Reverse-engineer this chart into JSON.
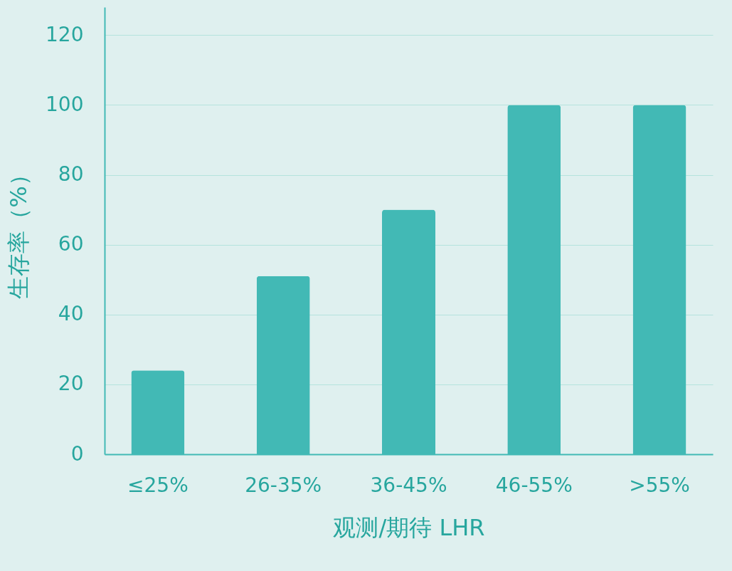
{
  "chart_data": {
    "type": "bar",
    "xlabel": "观测/期待 LHR",
    "ylabel": "生存率（%）",
    "categories": [
      "≤25%",
      "26-35%",
      "36-45%",
      "46-55%",
      ">55%"
    ],
    "values": [
      24,
      51,
      70,
      100,
      100
    ],
    "color": "#42b9b5",
    "ylim": [
      0,
      128
    ],
    "yticks": [
      0,
      20,
      40,
      60,
      80,
      100,
      120
    ],
    "grid": "y"
  }
}
